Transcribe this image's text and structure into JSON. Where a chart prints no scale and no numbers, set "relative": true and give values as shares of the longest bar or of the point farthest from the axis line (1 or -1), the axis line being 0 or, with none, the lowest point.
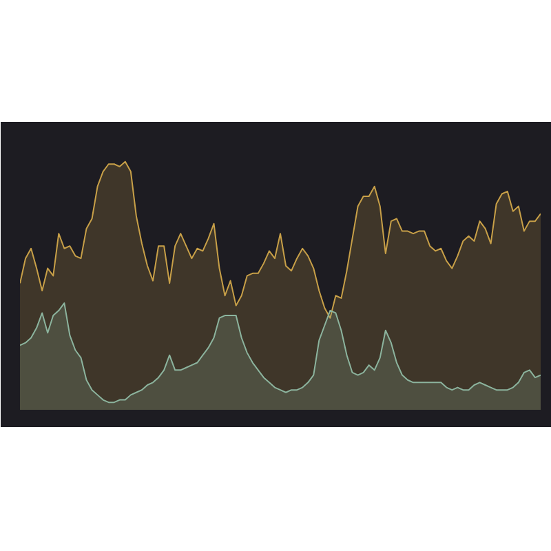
{
  "chart_data": {
    "type": "area",
    "relative": true,
    "categories": [
      null,
      null,
      null,
      null,
      null,
      null,
      null,
      null,
      null,
      null,
      null,
      null,
      null,
      null,
      null,
      null,
      null,
      null,
      null,
      null,
      null,
      null,
      null,
      null,
      null,
      null,
      null,
      null,
      null,
      null,
      null,
      null,
      null,
      null,
      null,
      null,
      null,
      null,
      null,
      null,
      null,
      null,
      null,
      null,
      null,
      null,
      null,
      null,
      null,
      null,
      null,
      null,
      null,
      null,
      null,
      null,
      null,
      null,
      null,
      null,
      null,
      null,
      null,
      null,
      null,
      null,
      null,
      null,
      null,
      null,
      null,
      null,
      null,
      null,
      null,
      null,
      null,
      null,
      null,
      null,
      null,
      null,
      null,
      null,
      null,
      null,
      null,
      null,
      null,
      null,
      null,
      null,
      null,
      null,
      null
    ],
    "series": [
      {
        "color": "#c8a048",
        "values": [
          0.51,
          0.61,
          0.65,
          0.57,
          0.48,
          0.57,
          0.54,
          0.71,
          0.65,
          0.66,
          0.62,
          0.61,
          0.73,
          0.77,
          0.9,
          0.96,
          0.99,
          0.99,
          0.98,
          1.0,
          0.96,
          0.78,
          0.67,
          0.58,
          0.52,
          0.66,
          0.66,
          0.51,
          0.66,
          0.71,
          0.66,
          0.61,
          0.65,
          0.64,
          0.69,
          0.75,
          0.57,
          0.46,
          0.52,
          0.42,
          0.46,
          0.54,
          0.55,
          0.55,
          0.59,
          0.64,
          0.61,
          0.71,
          0.58,
          0.56,
          0.61,
          0.65,
          0.62,
          0.57,
          0.48,
          0.41,
          0.37,
          0.46,
          0.45,
          0.56,
          0.69,
          0.82,
          0.86,
          0.86,
          0.9,
          0.82,
          0.63,
          0.76,
          0.77,
          0.72,
          0.72,
          0.71,
          0.72,
          0.72,
          0.66,
          0.64,
          0.65,
          0.6,
          0.57,
          0.62,
          0.68,
          0.7,
          0.68,
          0.76,
          0.73,
          0.67,
          0.83,
          0.87,
          0.88,
          0.8,
          0.82,
          0.72,
          0.76,
          0.76,
          0.79
        ]
      },
      {
        "color": "#8cb49e",
        "values": [
          0.26,
          0.27,
          0.29,
          0.33,
          0.39,
          0.31,
          0.38,
          0.4,
          0.43,
          0.3,
          0.24,
          0.21,
          0.12,
          0.08,
          0.06,
          0.04,
          0.03,
          0.03,
          0.04,
          0.04,
          0.06,
          0.07,
          0.08,
          0.1,
          0.11,
          0.13,
          0.16,
          0.22,
          0.16,
          0.16,
          0.17,
          0.18,
          0.19,
          0.22,
          0.25,
          0.29,
          0.37,
          0.38,
          0.38,
          0.38,
          0.29,
          0.23,
          0.19,
          0.16,
          0.13,
          0.11,
          0.09,
          0.08,
          0.07,
          0.08,
          0.08,
          0.09,
          0.11,
          0.14,
          0.28,
          0.34,
          0.4,
          0.39,
          0.32,
          0.22,
          0.15,
          0.14,
          0.15,
          0.18,
          0.16,
          0.21,
          0.32,
          0.27,
          0.19,
          0.14,
          0.12,
          0.11,
          0.11,
          0.11,
          0.11,
          0.11,
          0.11,
          0.09,
          0.08,
          0.09,
          0.08,
          0.08,
          0.1,
          0.11,
          0.1,
          0.09,
          0.08,
          0.08,
          0.08,
          0.09,
          0.11,
          0.15,
          0.16,
          0.13,
          0.14
        ]
      }
    ]
  }
}
